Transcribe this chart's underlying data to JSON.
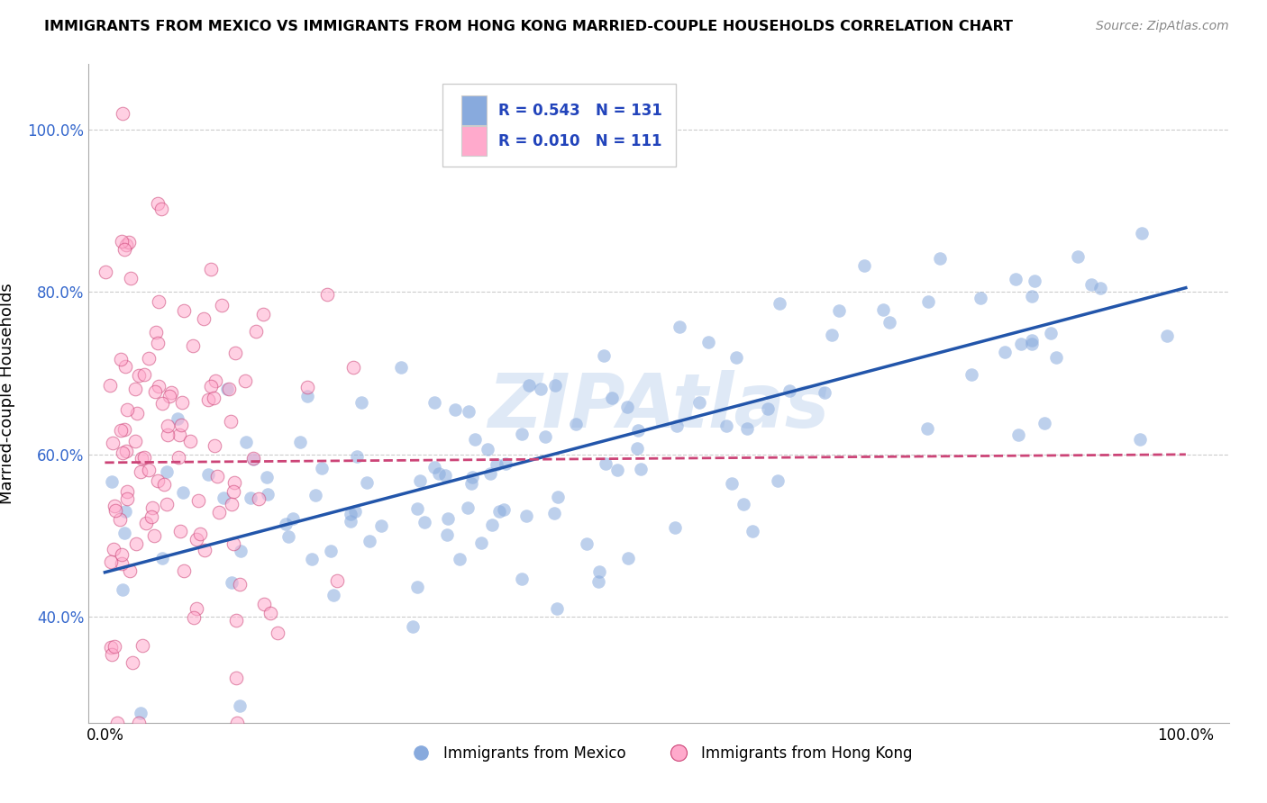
{
  "title": "IMMIGRANTS FROM MEXICO VS IMMIGRANTS FROM HONG KONG MARRIED-COUPLE HOUSEHOLDS CORRELATION CHART",
  "source": "Source: ZipAtlas.com",
  "ylabel": "Married-couple Households",
  "ytick_labels": [
    "40.0%",
    "60.0%",
    "80.0%",
    "100.0%"
  ],
  "ytick_values": [
    0.4,
    0.6,
    0.8,
    1.0
  ],
  "xtick_labels": [
    "0.0%",
    "100.0%"
  ],
  "xtick_values": [
    0.0,
    1.0
  ],
  "mexico_color": "#88aadd",
  "mexico_color_dark": "#2255aa",
  "hongkong_color": "#ffaacc",
  "hongkong_color_dark": "#cc4477",
  "mexico_R": 0.543,
  "mexico_N": 131,
  "hongkong_R": 0.01,
  "hongkong_N": 111,
  "watermark": "ZIPAtlas",
  "legend_bottom_mexico": "Immigrants from Mexico",
  "legend_bottom_hongkong": "Immigrants from Hong Kong",
  "mex_line_x0": 0.0,
  "mex_line_y0": 0.455,
  "mex_line_x1": 1.0,
  "mex_line_y1": 0.805,
  "hk_line_x0": 0.0,
  "hk_line_y0": 0.59,
  "hk_line_x1": 1.0,
  "hk_line_y1": 0.6
}
